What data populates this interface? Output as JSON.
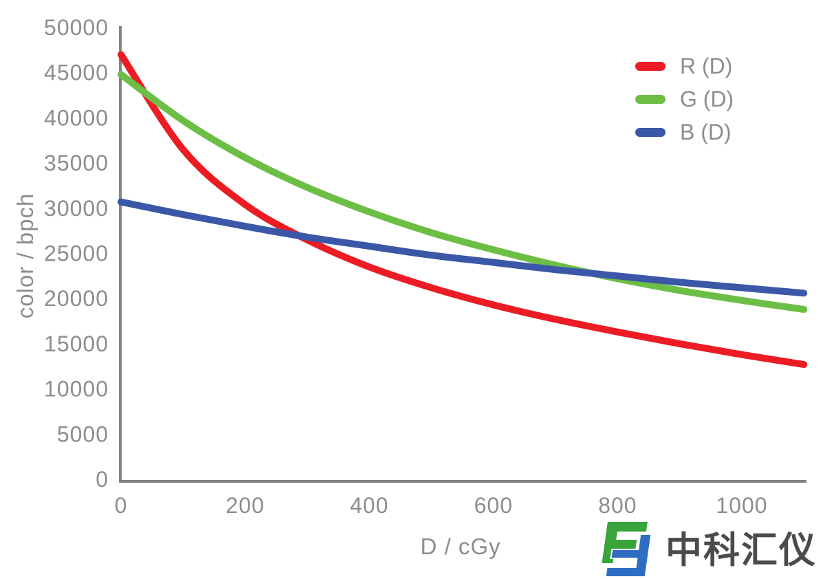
{
  "chart_data": {
    "type": "line",
    "title": "",
    "xlabel": "D / cGy",
    "ylabel": "color / bpch",
    "xlim": [
      0,
      1100
    ],
    "ylim": [
      0,
      50000
    ],
    "grid": false,
    "legend_position": "top-right",
    "xticks": [
      0,
      200,
      400,
      600,
      800,
      1000
    ],
    "yticks": [
      0,
      5000,
      10000,
      15000,
      20000,
      25000,
      30000,
      35000,
      40000,
      45000,
      50000
    ],
    "x": [
      0,
      100,
      200,
      300,
      400,
      500,
      600,
      700,
      800,
      900,
      1000,
      1100
    ],
    "series": [
      {
        "name": "R (D)",
        "color": "#ec1c24",
        "values": [
          47000,
          36500,
          30400,
          26500,
          23500,
          21200,
          19300,
          17700,
          16300,
          15000,
          13800,
          12700
        ]
      },
      {
        "name": "G (D)",
        "color": "#6cbe45",
        "values": [
          44800,
          39700,
          35600,
          32300,
          29600,
          27300,
          25400,
          23700,
          22200,
          20900,
          19800,
          18800
        ]
      },
      {
        "name": "B (D)",
        "color": "#3a57a8",
        "values": [
          30700,
          29300,
          28000,
          26800,
          25800,
          24800,
          24000,
          23200,
          22500,
          21800,
          21200,
          20600
        ]
      }
    ],
    "line_width": 10,
    "axis_color": "#828282",
    "tick_color": "#8d8d8d"
  },
  "legend": {
    "items": [
      {
        "label": "R (D)",
        "color": "#ec1c24"
      },
      {
        "label": "G (D)",
        "color": "#6cbe45"
      },
      {
        "label": "B (D)",
        "color": "#3a57a8"
      }
    ]
  },
  "brand": {
    "name": "中科汇仪",
    "text_color": "#4b4b4b",
    "logo_green": "#3aa43c",
    "logo_blue": "#2d6ec3"
  }
}
